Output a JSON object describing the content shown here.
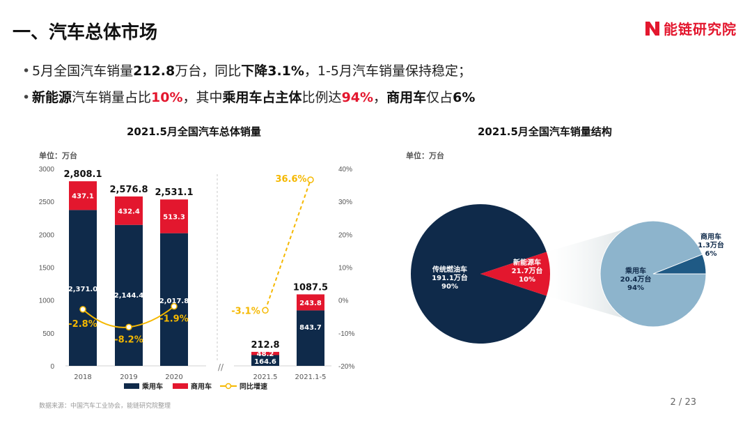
{
  "header": {
    "title": "一、汽车总体市场",
    "logo_text": "能链研究院"
  },
  "bullets": [
    {
      "segments": [
        {
          "text": "5月全国汽车销量",
          "style": "n"
        },
        {
          "text": "212.8",
          "style": "b"
        },
        {
          "text": "万台，同比",
          "style": "n"
        },
        {
          "text": "下降3.1%",
          "style": "b"
        },
        {
          "text": "，1-5月汽车销量保持稳定；",
          "style": "n"
        }
      ]
    },
    {
      "segments": [
        {
          "text": "新能源",
          "style": "b"
        },
        {
          "text": "汽车销量占比",
          "style": "n"
        },
        {
          "text": "10%",
          "style": "r"
        },
        {
          "text": "，其中",
          "style": "n"
        },
        {
          "text": "乘用车占主体",
          "style": "b"
        },
        {
          "text": "比例达",
          "style": "n"
        },
        {
          "text": "94%",
          "style": "r"
        },
        {
          "text": "，",
          "style": "n"
        },
        {
          "text": "商用车",
          "style": "b"
        },
        {
          "text": "仅占",
          "style": "n"
        },
        {
          "text": "6%",
          "style": "b"
        }
      ]
    }
  ],
  "colors": {
    "passenger": "#0f2a4a",
    "commercial": "#e3172e",
    "growth": "#f5b800",
    "pie_main": "#0f2a4a",
    "pie_nev": "#e3172e",
    "pie_detail": "#8db4cc",
    "pie_detail_small": "#1f5a85"
  },
  "chart_data": [
    {
      "type": "bar",
      "title": "2021.5月全国汽车总体销量",
      "unit_label": "单位：万台",
      "categories": [
        "2018",
        "2019",
        "2020",
        "2021.5",
        "2021.1-5"
      ],
      "series": [
        {
          "name": "乘用车",
          "values": [
            2371.0,
            2144.4,
            2017.8,
            164.6,
            843.7
          ],
          "labels": [
            "2,371.0",
            "2,144.4",
            "2,017.8",
            "164.6",
            "843.7"
          ]
        },
        {
          "name": "商用车",
          "values": [
            437.1,
            432.4,
            513.3,
            48.2,
            243.8
          ],
          "labels": [
            "437.1",
            "432.4",
            "513.3",
            "48.2",
            "243.8"
          ]
        },
        {
          "name": "同比增速",
          "values": [
            -2.8,
            -8.2,
            -1.9,
            -3.1,
            36.6
          ],
          "labels": [
            "-2.8%",
            "-8.2%",
            "-1.9%",
            "-3.1%",
            "36.6%"
          ]
        }
      ],
      "totals": [
        "2,808.1",
        "2,576.8",
        "2,531.1",
        "212.8",
        "1087.5"
      ],
      "ylim": [
        0,
        3000
      ],
      "yticks": [
        0,
        500,
        1000,
        1500,
        2000,
        2500,
        3000
      ],
      "y2lim": [
        -20,
        40
      ],
      "y2ticks": [
        "-20%",
        "-10%",
        "0%",
        "10%",
        "20%",
        "30%",
        "40%"
      ],
      "break_mark": "//",
      "legend": [
        "乘用车",
        "商用车",
        "同比增速"
      ]
    },
    {
      "type": "pie",
      "title": "2021.5月全国汽车销量结构",
      "unit_label": "单位：万台",
      "slices": [
        {
          "name": "传统燃油车",
          "value": 191.1,
          "value_label": "191.1万台",
          "pct": "90%"
        },
        {
          "name": "新能源车",
          "value": 21.7,
          "value_label": "21.7万台",
          "pct": "10%"
        }
      ],
      "detail_slices": [
        {
          "name": "乘用车",
          "value": 20.4,
          "value_label": "20.4万台",
          "pct": "94%"
        },
        {
          "name": "商用车",
          "value": 1.3,
          "value_label": "1.3万台",
          "pct": "6%"
        }
      ]
    }
  ],
  "footer": {
    "source": "数据来源：中国汽车工业协会，能链研究院整理",
    "page": "2 / 23"
  }
}
